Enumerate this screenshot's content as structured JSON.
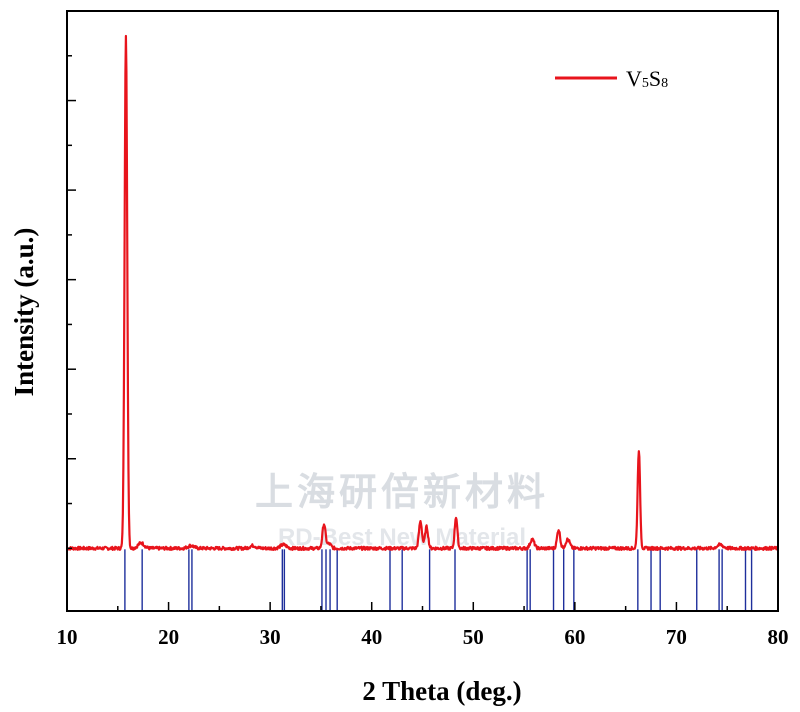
{
  "watermark": {
    "line1": "上海研倍新材料",
    "line2": "RD-Best New Material"
  },
  "chart_data": {
    "type": "line",
    "title": "",
    "xlabel": "2 Theta (deg.)",
    "ylabel": "Intensity (a.u.)",
    "xlim": [
      10,
      80
    ],
    "ylim": [
      -0.07,
      0.6
    ],
    "xticks": [
      10,
      20,
      30,
      40,
      50,
      60,
      70,
      80
    ],
    "yticks_labeled": false,
    "grid": false,
    "legend": {
      "position": "top-right",
      "entries": [
        {
          "name": "V5S8",
          "base": "V",
          "sub1": "5",
          "mid": "S",
          "sub2": "8",
          "color": "#e8141c"
        }
      ]
    },
    "series": [
      {
        "name": "V5S8",
        "color": "#e8141c",
        "baseline": 0.0,
        "peaks": [
          {
            "x": 15.8,
            "h": 0.572,
            "w": 0.13
          },
          {
            "x": 17.3,
            "h": 0.006,
            "w": 0.3
          },
          {
            "x": 22.2,
            "h": 0.003,
            "w": 0.3
          },
          {
            "x": 28.3,
            "h": 0.003,
            "w": 0.3
          },
          {
            "x": 31.3,
            "h": 0.004,
            "w": 0.3
          },
          {
            "x": 35.3,
            "h": 0.027,
            "w": 0.15
          },
          {
            "x": 35.8,
            "h": 0.005,
            "w": 0.2
          },
          {
            "x": 44.8,
            "h": 0.03,
            "w": 0.15
          },
          {
            "x": 45.4,
            "h": 0.024,
            "w": 0.15
          },
          {
            "x": 48.3,
            "h": 0.035,
            "w": 0.13
          },
          {
            "x": 55.8,
            "h": 0.01,
            "w": 0.2
          },
          {
            "x": 58.4,
            "h": 0.021,
            "w": 0.15
          },
          {
            "x": 59.3,
            "h": 0.01,
            "w": 0.2
          },
          {
            "x": 66.3,
            "h": 0.11,
            "w": 0.12
          },
          {
            "x": 74.3,
            "h": 0.004,
            "w": 0.3
          }
        ]
      },
      {
        "name": "reference",
        "type": "stick",
        "color": "#1e2f9c",
        "positions": [
          15.7,
          17.4,
          22.0,
          22.3,
          31.2,
          31.4,
          35.1,
          35.5,
          35.9,
          36.6,
          41.8,
          43.0,
          45.7,
          48.2,
          55.3,
          55.6,
          57.9,
          58.9,
          59.9,
          66.2,
          67.5,
          68.4,
          72.0,
          74.2,
          74.5,
          76.8,
          77.4
        ]
      }
    ]
  }
}
